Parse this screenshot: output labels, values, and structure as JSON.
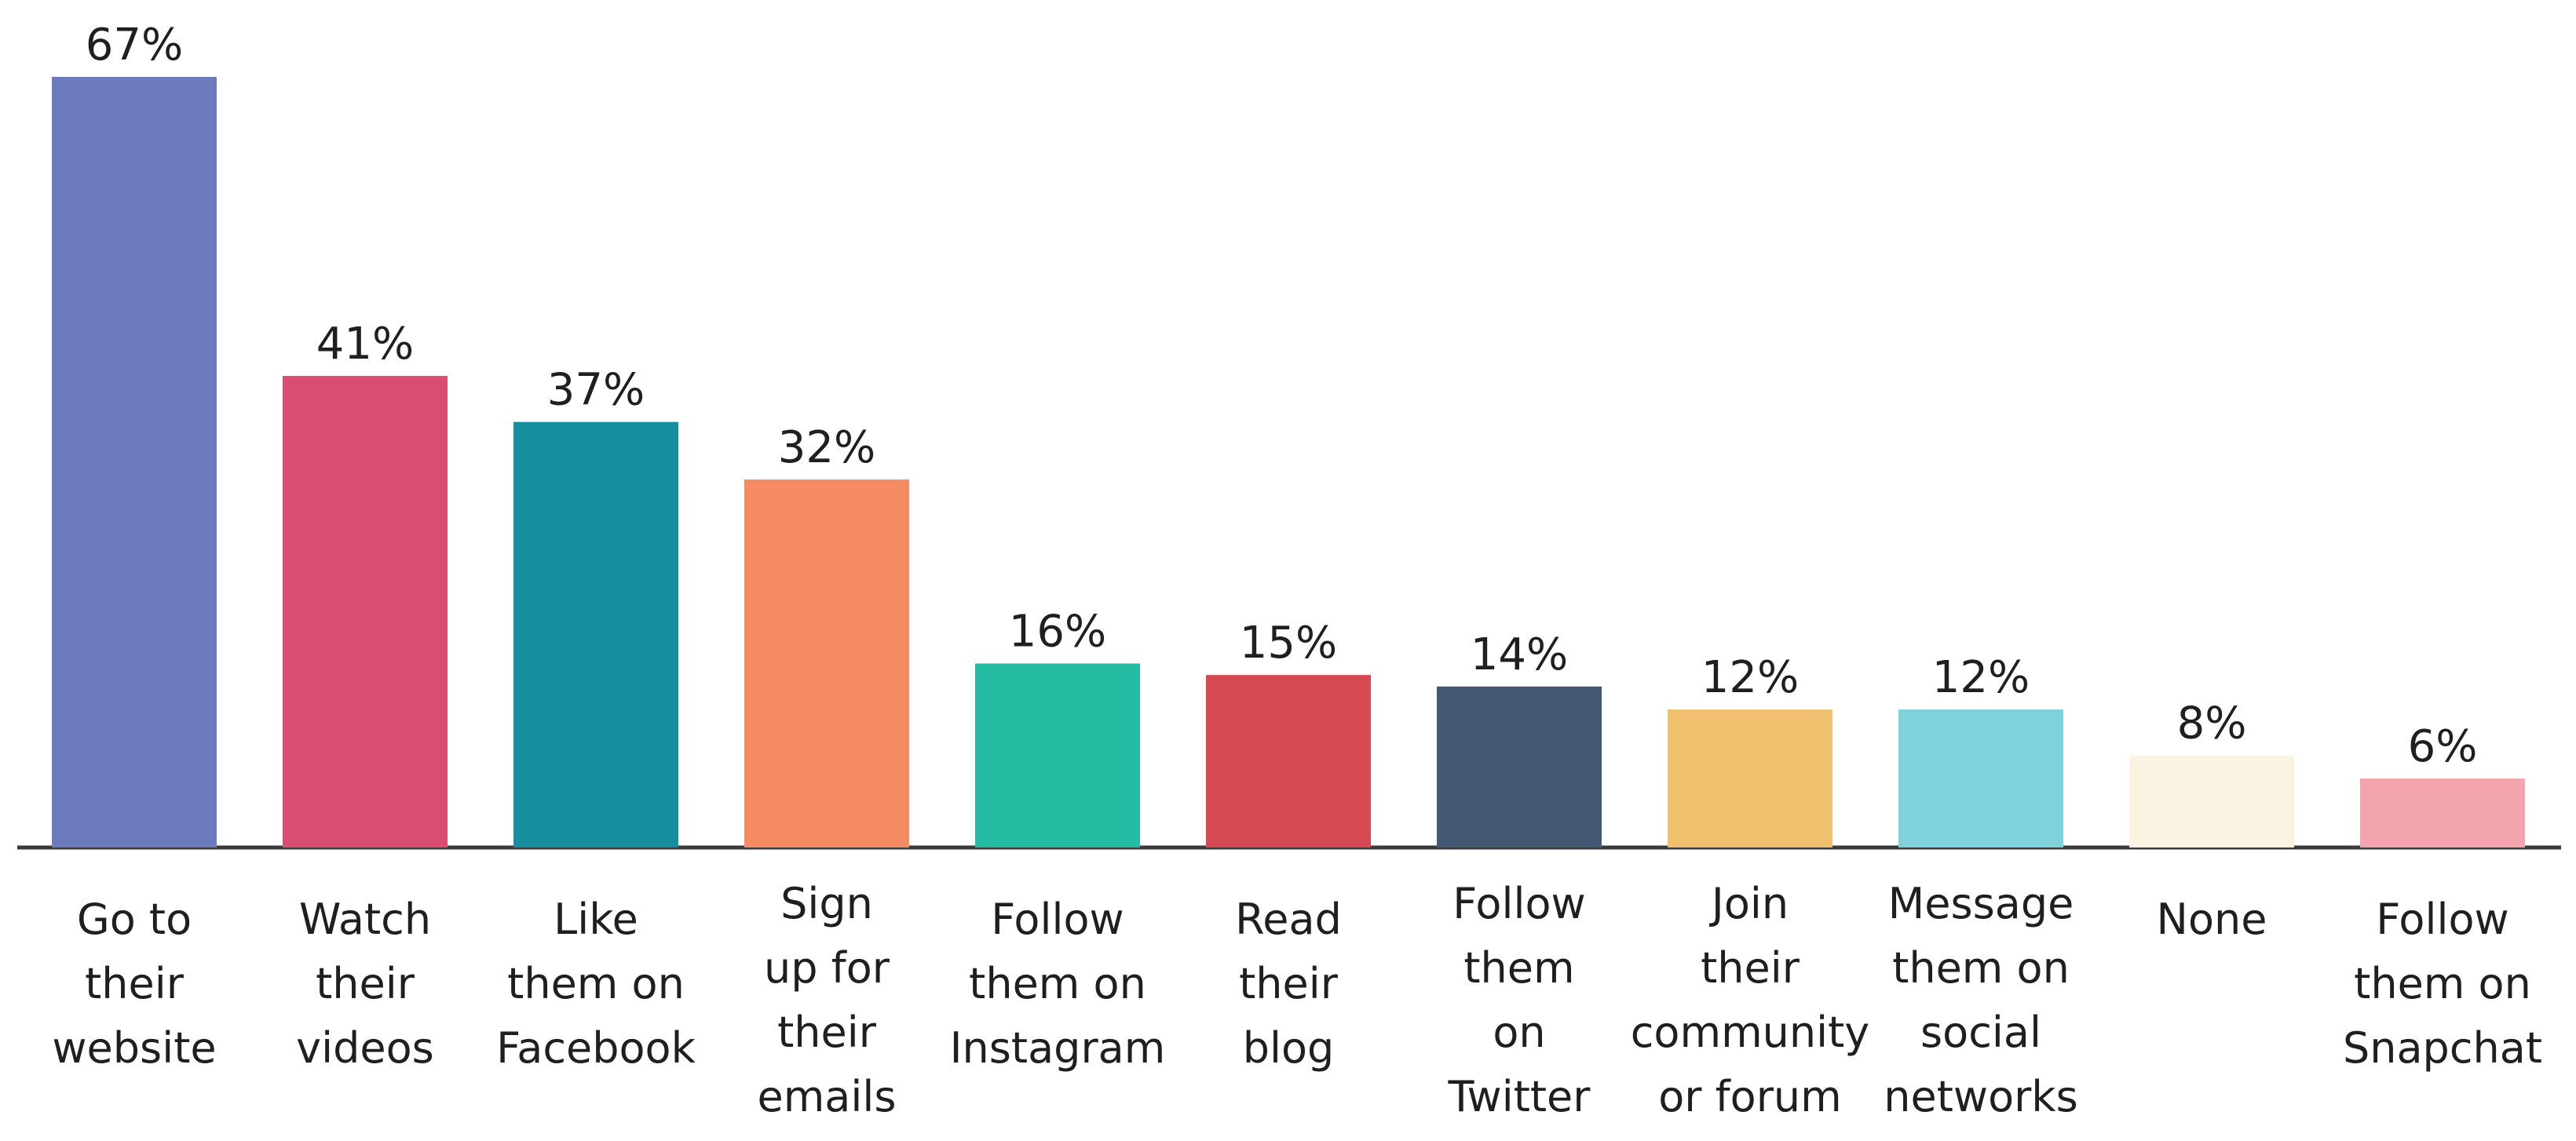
{
  "chart_data": {
    "type": "bar",
    "title": "",
    "xlabel": "",
    "ylabel": "",
    "ylim": [
      0,
      67
    ],
    "grid": false,
    "legend": "none",
    "categories": [
      "Go to their website",
      "Watch their videos",
      "Like them on Facebook",
      "Sign up for their emails",
      "Follow them on Instagram",
      "Read their blog",
      "Follow them on Twitter",
      "Join their community or forum",
      "Message them on social networks",
      "None",
      "Follow them on Snapchat"
    ],
    "category_lines": [
      [
        "Go to",
        "their",
        "website"
      ],
      [
        "Watch",
        "their",
        "videos"
      ],
      [
        "Like",
        "them on",
        "Facebook"
      ],
      [
        "Sign",
        "up for",
        "their",
        "emails"
      ],
      [
        "Follow",
        "them on",
        "Instagram"
      ],
      [
        "Read",
        "their",
        "blog"
      ],
      [
        "Follow",
        "them",
        "on",
        "Twitter"
      ],
      [
        "Join",
        "their",
        "community",
        "or forum"
      ],
      [
        "Message",
        "them on",
        "social",
        "networks"
      ],
      [
        "None"
      ],
      [
        "Follow",
        "them on",
        "Snapchat"
      ]
    ],
    "values": [
      67,
      41,
      37,
      32,
      16,
      15,
      14,
      12,
      12,
      8,
      6
    ],
    "value_labels": [
      "67%",
      "41%",
      "37%",
      "32%",
      "16%",
      "15%",
      "14%",
      "12%",
      "12%",
      "8%",
      "6%"
    ],
    "colors": [
      "#6c7bbb",
      "#d94d72",
      "#178e9f",
      "#f58b62",
      "#25bba2",
      "#d54a52",
      "#455873",
      "#f1c06e",
      "#7fd1dc",
      "#faf3e2",
      "#f4a4ad"
    ],
    "axis_color": "#3a3a3a"
  }
}
